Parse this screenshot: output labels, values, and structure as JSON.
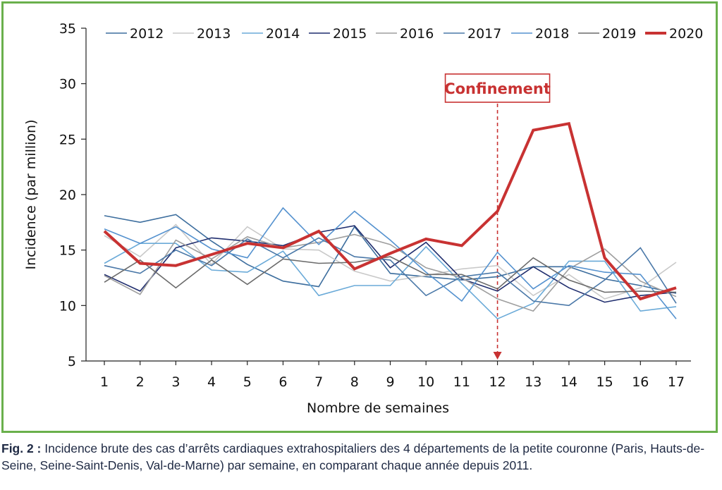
{
  "chart_data": {
    "type": "line",
    "title": "",
    "xlabel": "Nombre de semaines",
    "ylabel": "Incidence (par million)",
    "x": [
      1,
      2,
      3,
      4,
      5,
      6,
      7,
      8,
      9,
      10,
      11,
      12,
      13,
      14,
      15,
      16,
      17
    ],
    "xlim": [
      1,
      17
    ],
    "ylim": [
      5,
      35
    ],
    "yticks": [
      5,
      10,
      15,
      20,
      25,
      30,
      35
    ],
    "grid": false,
    "legend_position": "top",
    "annotation": {
      "label": "Confinement",
      "x": 12,
      "color": "#c83232"
    },
    "series": [
      {
        "name": "2012",
        "color": "#3d6e9e",
        "width": 1.6,
        "values": [
          18.1,
          17.5,
          18.2,
          15.8,
          13.7,
          12.2,
          11.7,
          17.1,
          12.9,
          12.6,
          12.3,
          12.6,
          13.5,
          13.5,
          12.4,
          11.8,
          11.1
        ]
      },
      {
        "name": "2013",
        "color": "#c9c9c9",
        "width": 1.6,
        "values": [
          16.3,
          14.4,
          17.3,
          13.7,
          17.1,
          15.1,
          15.0,
          13.1,
          12.2,
          12.7,
          13.3,
          13.6,
          10.9,
          12.8,
          10.6,
          11.6,
          13.9
        ]
      },
      {
        "name": "2014",
        "color": "#6aaad8",
        "width": 1.6,
        "values": [
          13.8,
          15.6,
          15.6,
          13.2,
          13.0,
          14.9,
          10.9,
          11.8,
          11.8,
          15.3,
          12.0,
          8.8,
          10.2,
          14.0,
          14.0,
          9.5,
          9.9
        ]
      },
      {
        "name": "2015",
        "color": "#1f2d6e",
        "width": 1.6,
        "values": [
          12.8,
          11.3,
          15.2,
          16.1,
          15.8,
          15.4,
          16.6,
          17.2,
          13.4,
          15.7,
          12.4,
          11.3,
          13.5,
          11.6,
          10.3,
          10.9,
          11.2
        ]
      },
      {
        "name": "2016",
        "color": "#9e9e9e",
        "width": 1.6,
        "values": [
          12.7,
          11.0,
          15.9,
          14.2,
          16.2,
          15.2,
          15.7,
          16.4,
          15.5,
          13.4,
          12.5,
          10.6,
          9.5,
          13.3,
          15.1,
          12.2,
          10.8
        ]
      },
      {
        "name": "2017",
        "color": "#4a78a8",
        "width": 1.6,
        "values": [
          13.6,
          12.9,
          15.0,
          13.6,
          16.0,
          14.3,
          16.1,
          14.4,
          14.1,
          10.9,
          12.6,
          13.0,
          10.4,
          10.0,
          12.3,
          15.2,
          10.2
        ]
      },
      {
        "name": "2018",
        "color": "#5592cf",
        "width": 1.6,
        "values": [
          16.9,
          15.6,
          17.1,
          15.1,
          14.3,
          18.8,
          15.5,
          18.5,
          15.9,
          13.0,
          10.4,
          14.8,
          11.5,
          13.6,
          13.0,
          12.8,
          8.8
        ]
      },
      {
        "name": "2019",
        "color": "#6b6b6b",
        "width": 1.6,
        "values": [
          12.1,
          14.1,
          11.6,
          14.1,
          11.9,
          14.2,
          13.8,
          13.9,
          14.4,
          12.8,
          12.8,
          11.5,
          14.3,
          12.3,
          11.2,
          11.3,
          11.2
        ]
      },
      {
        "name": "2020",
        "color": "#c83232",
        "width": 4,
        "values": [
          16.7,
          13.8,
          13.6,
          14.6,
          15.6,
          15.2,
          16.7,
          13.3,
          14.7,
          16.0,
          15.4,
          18.5,
          25.8,
          26.4,
          14.3,
          10.6,
          11.6
        ]
      }
    ]
  },
  "caption": {
    "label": "Fig. 2 :",
    "text": " Incidence brute des cas d’arrêts cardiaques extrahospitaliers des 4 départements de la petite couronne (Paris, Hauts-de-Seine, Seine-Saint-Denis, Val-de-Marne) par semaine, en comparant chaque année depuis 2011."
  }
}
